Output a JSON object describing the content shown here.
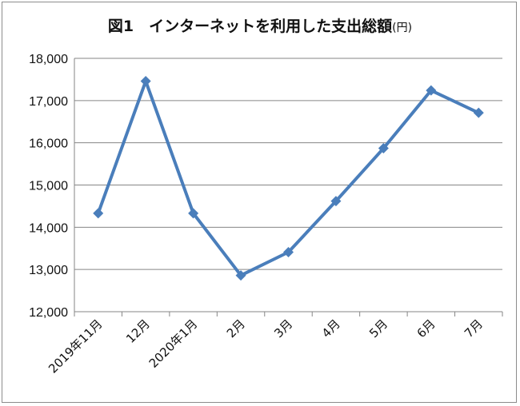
{
  "chart_data": {
    "type": "line",
    "title": "図1　インターネットを利用した支出総額",
    "unit": "(円)",
    "categories": [
      "2019年11月",
      "12月",
      "2020年1月",
      "2月",
      "3月",
      "4月",
      "5月",
      "6月",
      "7月"
    ],
    "series": [
      {
        "values": [
          14330,
          17460,
          14330,
          12860,
          13410,
          14620,
          15870,
          17240,
          16710
        ],
        "color": "#4a7ebb"
      }
    ],
    "ylim": [
      12000,
      18000
    ],
    "yticks": [
      12000,
      13000,
      14000,
      15000,
      16000,
      17000,
      18000
    ],
    "ytick_labels": [
      "12,000",
      "13,000",
      "14,000",
      "15,000",
      "16,000",
      "17,000",
      "18,000"
    ],
    "grid": true,
    "legend": "none",
    "marker": "diamond"
  }
}
